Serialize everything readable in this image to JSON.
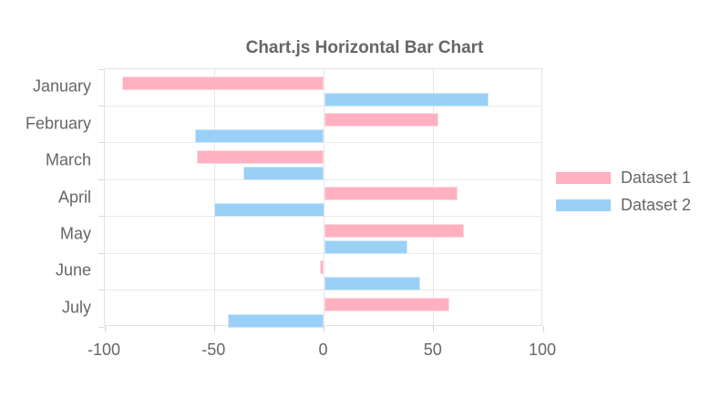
{
  "chart_data": {
    "type": "bar",
    "orientation": "horizontal",
    "title": "Chart.js Horizontal Bar Chart",
    "categories": [
      "January",
      "February",
      "March",
      "April",
      "May",
      "June",
      "July"
    ],
    "series": [
      {
        "name": "Dataset 1",
        "fill": "#ffb1c1",
        "border": "#ffd9e0",
        "values": [
          -92,
          52,
          -58,
          61,
          64,
          -2,
          57
        ]
      },
      {
        "name": "Dataset 2",
        "fill": "#9ad0f5",
        "border": "#cfe8fb",
        "values": [
          75,
          -59,
          -37,
          -50,
          38,
          44,
          -44
        ]
      }
    ],
    "xlim": [
      -100,
      100
    ],
    "x_ticks": [
      -100,
      -50,
      0,
      50,
      100
    ],
    "grid": true,
    "legend_position": "right",
    "title_color": "#666666",
    "axis_text_color": "#666666",
    "grid_color": "#e6e6e6"
  }
}
